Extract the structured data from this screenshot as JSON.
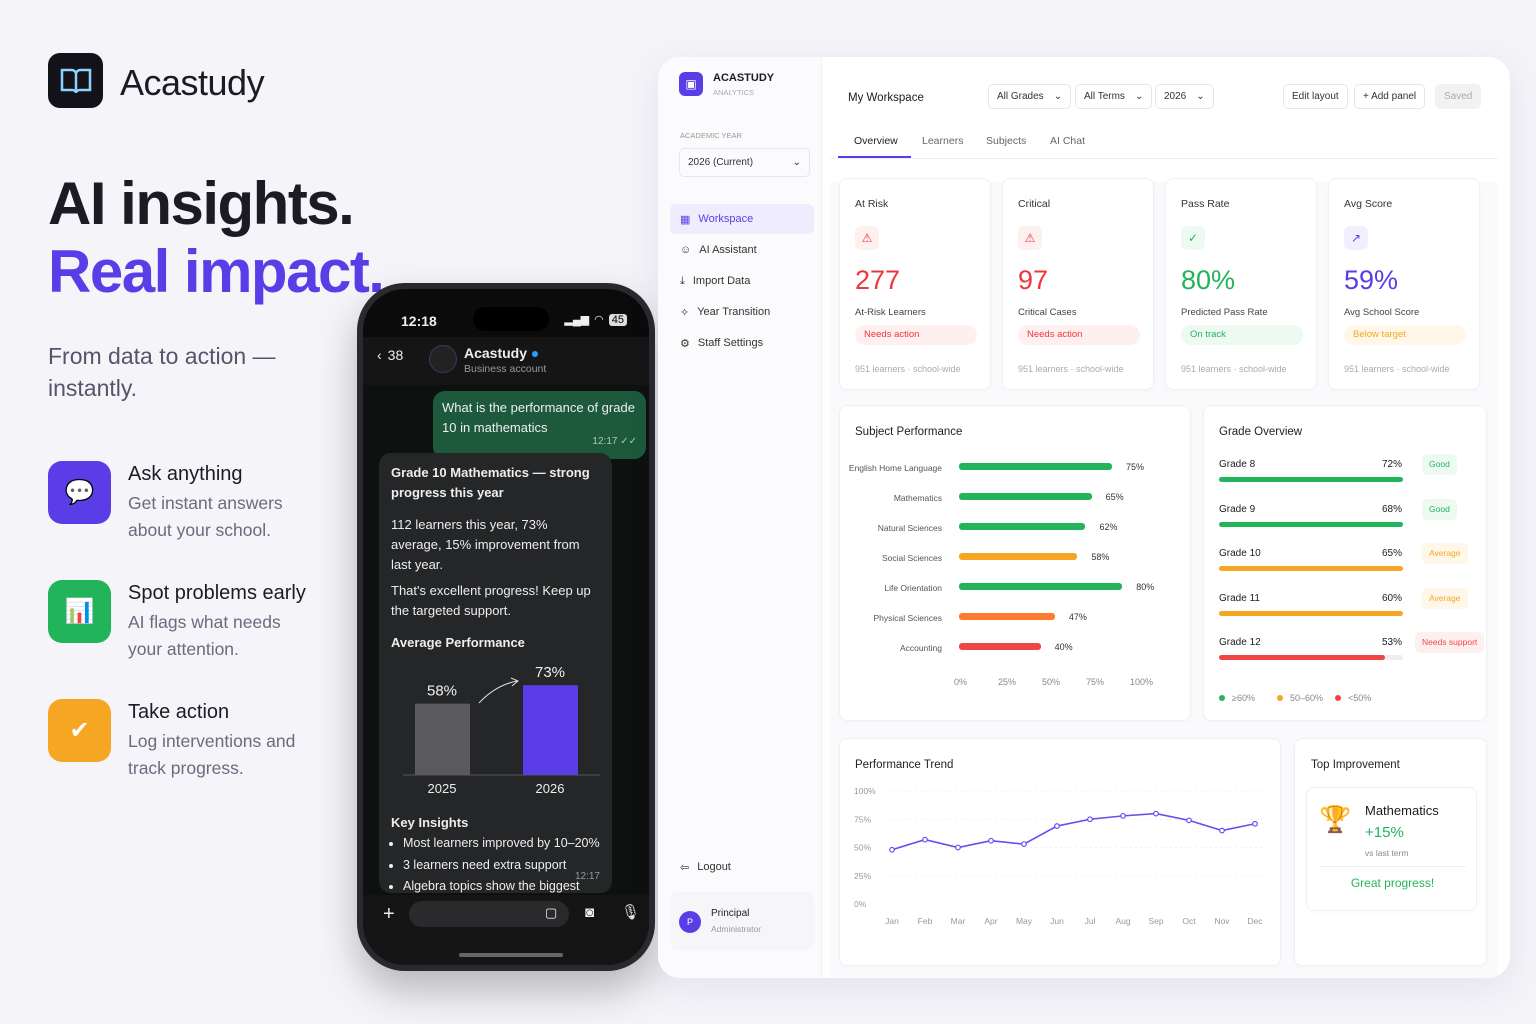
{
  "brand": {
    "name": "Acastudy"
  },
  "hero": {
    "line1": "AI insights.",
    "line2": "Real impact.",
    "subtitle": "From data to action — instantly."
  },
  "features": [
    {
      "title": "Ask anything",
      "desc": "Get instant answers about your school.",
      "icon": "chat-icon",
      "color": "#5b3de8"
    },
    {
      "title": "Spot problems early",
      "desc": "AI flags what needs your attention.",
      "icon": "bar-chart-icon",
      "color": "#22b45a"
    },
    {
      "title": "Take action",
      "desc": "Log interventions and track progress.",
      "icon": "check-circle-icon",
      "color": "#f5a623"
    }
  ],
  "phone": {
    "time": "12:18",
    "battery": "45",
    "back_count": "38",
    "contact": "Acastudy",
    "contact_sub": "Business account",
    "out_msg": "What is the performance of grade 10 in mathematics",
    "out_time": "12:17",
    "in_title": "Grade 10 Mathematics — strong progress this year",
    "in_p1": "112 learners this year, 73% average, 15% improvement from last year.",
    "in_p2": "That's excellent progress! Keep up the targeted support.",
    "chart_title": "Average Performance",
    "insights_title": "Key Insights",
    "insights": [
      "Most learners improved by 10–20%",
      "3 learners need extra support",
      "Algebra topics show the biggest improvement"
    ],
    "in_time": "12:17"
  },
  "sidebar": {
    "brand": "ACASTUDY",
    "brand_sub": "ANALYTICS",
    "year_label": "ACADEMIC YEAR",
    "year_value": "2026 (Current)",
    "items": [
      {
        "label": "Workspace",
        "icon": "grid-icon"
      },
      {
        "label": "AI Assistant",
        "icon": "robot-icon"
      },
      {
        "label": "Import Data",
        "icon": "download-icon"
      },
      {
        "label": "Year Transition",
        "icon": "transition-icon"
      },
      {
        "label": "Staff Settings",
        "icon": "gear-icon"
      }
    ],
    "logout": "Logout",
    "user_name": "Principal",
    "user_role": "Administrator",
    "user_initial": "P"
  },
  "header": {
    "title": "My Workspace",
    "filters": [
      "All Grades",
      "All Terms",
      "2026"
    ],
    "edit_layout": "Edit layout",
    "add_panel": "+ Add panel",
    "saved": "Saved"
  },
  "tabs": [
    "Overview",
    "Learners",
    "Subjects",
    "AI Chat"
  ],
  "kpis": [
    {
      "title": "At Risk",
      "value": "277",
      "label": "At-Risk Learners",
      "badge": "Needs action",
      "footer": "951 learners · school-wide",
      "color": "#f0353a",
      "bg": "#fff0f0",
      "icon": "warning-icon"
    },
    {
      "title": "Critical",
      "value": "97",
      "label": "Critical Cases",
      "badge": "Needs action",
      "footer": "951 learners · school-wide",
      "color": "#f0353a",
      "bg": "#fff0f0",
      "icon": "warning-icon"
    },
    {
      "title": "Pass Rate",
      "value": "80%",
      "label": "Predicted Pass Rate",
      "badge": "On track",
      "footer": "951 learners · school-wide",
      "color": "#22b45a",
      "bg": "#edfaf1",
      "icon": "check-badge-icon"
    },
    {
      "title": "Avg Score",
      "value": "59%",
      "label": "Avg School Score",
      "badge": "Below target",
      "footer": "951 learners · school-wide",
      "color": "#5b3de8",
      "badge_color": "#f5a623",
      "bg": "#f1effe",
      "badge_bg": "#fff8ea",
      "icon": "trend-up-icon"
    }
  ],
  "chart_data": [
    {
      "type": "bar",
      "title": "Subject Performance",
      "orientation": "horizontal",
      "categories": [
        "English Home Language",
        "Mathematics",
        "Natural Sciences",
        "Social Sciences",
        "Life Orientation",
        "Physical Sciences",
        "Accounting"
      ],
      "values": [
        75,
        65,
        62,
        58,
        80,
        47,
        40
      ],
      "colors": [
        "#22b45a",
        "#22b45a",
        "#22b45a",
        "#f5a623",
        "#22b45a",
        "#ff7a2f",
        "#f04545"
      ],
      "xticks": [
        "0%",
        "25%",
        "50%",
        "75%",
        "100%"
      ],
      "xlim": [
        0,
        100
      ]
    },
    {
      "type": "bar",
      "title": "Grade Overview",
      "orientation": "horizontal",
      "categories": [
        "Grade 8",
        "Grade 9",
        "Grade 10",
        "Grade 11",
        "Grade 12"
      ],
      "values": [
        72,
        68,
        65,
        60,
        53
      ],
      "badges": [
        "Good",
        "Good",
        "Average",
        "Average",
        "Needs support"
      ],
      "legend": [
        {
          "label": "≥60%",
          "color": "#22b45a"
        },
        {
          "label": "50–60%",
          "color": "#f5a623"
        },
        {
          "label": "<50%",
          "color": "#f04545"
        }
      ]
    },
    {
      "type": "line",
      "title": "Performance Trend",
      "x": [
        "Jan",
        "Feb",
        "Mar",
        "Apr",
        "May",
        "Jun",
        "Jul",
        "Aug",
        "Sep",
        "Oct",
        "Nov",
        "Dec"
      ],
      "values": [
        48,
        57,
        50,
        56,
        53,
        69,
        75,
        78,
        80,
        74,
        65,
        71
      ],
      "yticks": [
        "100%",
        "75%",
        "50%",
        "25%",
        "0%"
      ],
      "ylim": [
        0,
        100
      ],
      "color": "#6a4cf0",
      "grid": true
    },
    {
      "type": "bar",
      "title": "Average Performance",
      "categories": [
        "2025",
        "2026"
      ],
      "values": [
        58,
        73
      ],
      "labels": [
        "58%",
        "73%"
      ],
      "colors": [
        "#5a5a5e",
        "#5b3de8"
      ]
    }
  ],
  "top_improvement": {
    "title": "Top Improvement",
    "subject": "Mathematics",
    "delta": "+15%",
    "note": "vs last term",
    "message": "Great progress!"
  }
}
